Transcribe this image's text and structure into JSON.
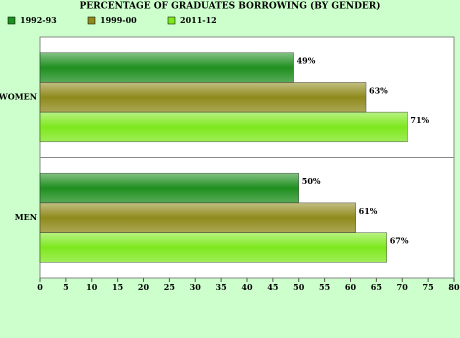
{
  "chart_data": {
    "type": "hbar",
    "title": "PERCENTAGE OF GRADUATES BORROWING (BY GENDER)",
    "categories": [
      "WOMEN",
      "MEN"
    ],
    "series": [
      {
        "name": "1992-93",
        "color": "#1f8f1f",
        "values": [
          49,
          50
        ],
        "value_labels": [
          "49%",
          "50%"
        ]
      },
      {
        "name": "1999-00",
        "color": "#8f8a1c",
        "values": [
          63,
          61
        ],
        "value_labels": [
          "63%",
          "61%"
        ]
      },
      {
        "name": "2011-12",
        "color": "#7ee81e",
        "values": [
          71,
          67
        ],
        "value_labels": [
          "71%",
          "67%"
        ]
      }
    ],
    "xlim": [
      0,
      80
    ],
    "xticks": [
      0,
      5,
      10,
      15,
      20,
      25,
      30,
      35,
      40,
      45,
      50,
      55,
      60,
      65,
      70,
      75,
      80
    ],
    "grid": false,
    "legend": "top-left"
  }
}
